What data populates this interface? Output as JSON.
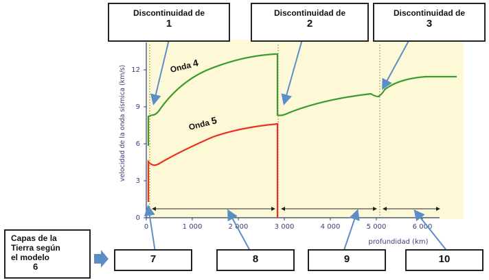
{
  "discontinuities": [
    {
      "title": "Discontinuidad de",
      "number": "1"
    },
    {
      "title": "Discontinuidad de",
      "number": "2"
    },
    {
      "title": "Discontinuidad de",
      "number": "3"
    }
  ],
  "waves": {
    "onda4": {
      "label": "Onda",
      "number": "4",
      "color": "#3a9a2a"
    },
    "onda5": {
      "label": "Onda",
      "number": "5",
      "color": "#e8321e"
    }
  },
  "axis": {
    "ylabel": "velocidad de la onda sísmica (km/s)",
    "xlabel": "profundidad (km)",
    "yticks": [
      "0",
      "3",
      "6",
      "9",
      "12"
    ],
    "xticks": [
      "0",
      "1 000",
      "2 000",
      "3 000",
      "4 000",
      "5 000",
      "6 000"
    ]
  },
  "layers_legend": {
    "line1": "Capas de la",
    "line2": "Tierra según",
    "line3": "el modelo",
    "number": "6"
  },
  "layer_boxes": [
    "7",
    "8",
    "9",
    "10"
  ],
  "colors": {
    "chart_bg": "#fdf8d6",
    "arrow": "#5b8ec7",
    "axis": "#2f3f7a"
  }
}
